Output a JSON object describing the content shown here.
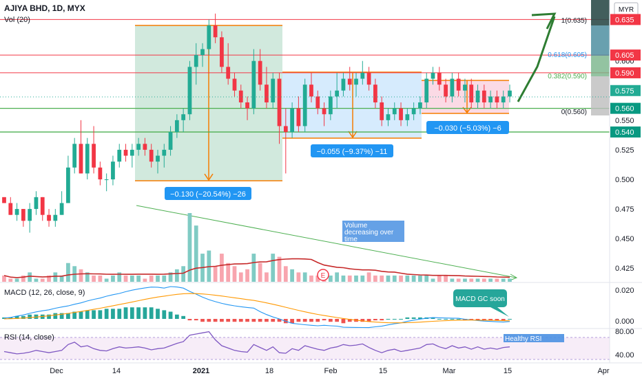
{
  "header": {
    "symbol": "AJIYA BHD, 1D, MYX",
    "volume_label": "Vol (20)",
    "currency": "MYR"
  },
  "panes": {
    "macd_label": "MACD (12, 26, close, 9)",
    "rsi_label": "RSI (14, close)"
  },
  "price_axis": {
    "ticks": [
      "0.600",
      "0.550",
      "0.525",
      "0.500",
      "0.475",
      "0.450",
      "0.425"
    ],
    "tick_values": [
      0.6,
      0.55,
      0.525,
      0.5,
      0.475,
      0.45,
      0.425
    ],
    "tags": [
      {
        "text": "0.635",
        "value": 0.635,
        "color": "#f23645"
      },
      {
        "text": "0.605",
        "value": 0.605,
        "color": "#f23645"
      },
      {
        "text": "0.590",
        "value": 0.59,
        "color": "#f23645"
      },
      {
        "text": "0.575",
        "value": 0.575,
        "color": "#22ab94"
      },
      {
        "text": "0.560",
        "value": 0.56,
        "color": "#089981"
      },
      {
        "text": "0.540",
        "value": 0.54,
        "color": "#089981"
      }
    ],
    "macd_ticks": [
      "0.020",
      "0.000"
    ],
    "rsi_ticks": [
      "80.00",
      "40.00"
    ]
  },
  "time_axis": {
    "labels": [
      "Dec",
      "14",
      "2021",
      "18",
      "Feb",
      "15",
      "Mar",
      "15",
      "Apr"
    ]
  },
  "fib": {
    "labels": [
      "1(0.635)",
      "0.618(0.605)",
      "0.382(0.590)",
      "0(0.560)"
    ]
  },
  "measures": [
    {
      "text": "−0.130 (−20.54%) −26"
    },
    {
      "text": "−0.055 (−9.37%) −11"
    },
    {
      "text": "−0.030 (−5.03%) −6"
    }
  ],
  "notes": {
    "volume": [
      "Volume",
      "decreasing over",
      "time"
    ],
    "macd": "MACD GC soon",
    "rsi": "Healthy RSI",
    "earnings": "E"
  },
  "colors": {
    "up": "#22ab94",
    "down": "#f23645",
    "resistance": "#f23645",
    "support": "#4caf50",
    "range_box": "#0b7a5a",
    "consolidation_box": "#2196f3",
    "recent_box": "#e040fb",
    "arrow": "#2e7d32"
  },
  "chart_data": {
    "type": "candlestick",
    "title": "AJIYA BHD, 1D, MYX",
    "ylim": [
      0.417,
      0.648
    ],
    "levels": {
      "resistance": [
        0.635,
        0.605,
        0.59
      ],
      "support": [
        0.56,
        0.54
      ]
    },
    "ohlc": [
      [
        0.485,
        0.485,
        0.48,
        0.48
      ],
      [
        0.48,
        0.485,
        0.47,
        0.47
      ],
      [
        0.47,
        0.48,
        0.465,
        0.475
      ],
      [
        0.475,
        0.475,
        0.46,
        0.465
      ],
      [
        0.465,
        0.48,
        0.455,
        0.475
      ],
      [
        0.475,
        0.49,
        0.47,
        0.485
      ],
      [
        0.485,
        0.485,
        0.465,
        0.47
      ],
      [
        0.47,
        0.475,
        0.46,
        0.465
      ],
      [
        0.465,
        0.475,
        0.46,
        0.47
      ],
      [
        0.47,
        0.49,
        0.47,
        0.48
      ],
      [
        0.48,
        0.52,
        0.48,
        0.51
      ],
      [
        0.51,
        0.535,
        0.505,
        0.53
      ],
      [
        0.53,
        0.55,
        0.505,
        0.505
      ],
      [
        0.505,
        0.535,
        0.5,
        0.53
      ],
      [
        0.53,
        0.545,
        0.505,
        0.51
      ],
      [
        0.51,
        0.515,
        0.495,
        0.5
      ],
      [
        0.5,
        0.505,
        0.49,
        0.5
      ],
      [
        0.5,
        0.52,
        0.495,
        0.515
      ],
      [
        0.515,
        0.53,
        0.51,
        0.525
      ],
      [
        0.525,
        0.53,
        0.515,
        0.52
      ],
      [
        0.52,
        0.53,
        0.51,
        0.525
      ],
      [
        0.525,
        0.535,
        0.52,
        0.53
      ],
      [
        0.53,
        0.535,
        0.52,
        0.525
      ],
      [
        0.525,
        0.53,
        0.51,
        0.515
      ],
      [
        0.515,
        0.525,
        0.505,
        0.52
      ],
      [
        0.52,
        0.53,
        0.51,
        0.525
      ],
      [
        0.525,
        0.545,
        0.52,
        0.54
      ],
      [
        0.54,
        0.555,
        0.535,
        0.55
      ],
      [
        0.55,
        0.56,
        0.54,
        0.555
      ],
      [
        0.555,
        0.6,
        0.55,
        0.595
      ],
      [
        0.595,
        0.615,
        0.58,
        0.605
      ],
      [
        0.605,
        0.615,
        0.595,
        0.61
      ],
      [
        0.61,
        0.635,
        0.605,
        0.63
      ],
      [
        0.63,
        0.64,
        0.615,
        0.62
      ],
      [
        0.62,
        0.625,
        0.59,
        0.595
      ],
      [
        0.595,
        0.615,
        0.58,
        0.585
      ],
      [
        0.585,
        0.59,
        0.57,
        0.575
      ],
      [
        0.575,
        0.58,
        0.56,
        0.565
      ],
      [
        0.565,
        0.57,
        0.55,
        0.56
      ],
      [
        0.56,
        0.61,
        0.555,
        0.6
      ],
      [
        0.6,
        0.61,
        0.575,
        0.58
      ],
      [
        0.58,
        0.595,
        0.56,
        0.565
      ],
      [
        0.565,
        0.59,
        0.56,
        0.585
      ],
      [
        0.585,
        0.59,
        0.53,
        0.545
      ],
      [
        0.545,
        0.56,
        0.505,
        0.54
      ],
      [
        0.54,
        0.565,
        0.535,
        0.56
      ],
      [
        0.56,
        0.57,
        0.54,
        0.545
      ],
      [
        0.545,
        0.585,
        0.54,
        0.58
      ],
      [
        0.58,
        0.59,
        0.565,
        0.57
      ],
      [
        0.57,
        0.575,
        0.555,
        0.56
      ],
      [
        0.56,
        0.565,
        0.545,
        0.555
      ],
      [
        0.555,
        0.575,
        0.55,
        0.57
      ],
      [
        0.57,
        0.59,
        0.56,
        0.575
      ],
      [
        0.575,
        0.59,
        0.57,
        0.585
      ],
      [
        0.585,
        0.595,
        0.575,
        0.58
      ],
      [
        0.58,
        0.59,
        0.57,
        0.585
      ],
      [
        0.585,
        0.6,
        0.58,
        0.59
      ],
      [
        0.59,
        0.595,
        0.575,
        0.58
      ],
      [
        0.58,
        0.585,
        0.56,
        0.565
      ],
      [
        0.565,
        0.57,
        0.545,
        0.55
      ],
      [
        0.55,
        0.56,
        0.545,
        0.555
      ],
      [
        0.555,
        0.565,
        0.55,
        0.56
      ],
      [
        0.56,
        0.565,
        0.545,
        0.55
      ],
      [
        0.55,
        0.56,
        0.545,
        0.555
      ],
      [
        0.555,
        0.565,
        0.55,
        0.56
      ],
      [
        0.56,
        0.57,
        0.555,
        0.565
      ],
      [
        0.565,
        0.59,
        0.56,
        0.585
      ],
      [
        0.585,
        0.595,
        0.58,
        0.59
      ],
      [
        0.59,
        0.595,
        0.575,
        0.58
      ],
      [
        0.58,
        0.585,
        0.565,
        0.57
      ],
      [
        0.57,
        0.59,
        0.565,
        0.585
      ],
      [
        0.585,
        0.59,
        0.57,
        0.575
      ],
      [
        0.575,
        0.585,
        0.565,
        0.58
      ],
      [
        0.58,
        0.585,
        0.56,
        0.565
      ],
      [
        0.565,
        0.58,
        0.56,
        0.575
      ],
      [
        0.575,
        0.58,
        0.56,
        0.565
      ],
      [
        0.565,
        0.575,
        0.56,
        0.57
      ],
      [
        0.57,
        0.575,
        0.56,
        0.565
      ],
      [
        0.565,
        0.575,
        0.56,
        0.57
      ],
      [
        0.57,
        0.58,
        0.565,
        0.575
      ]
    ],
    "volume": [
      2,
      1,
      1,
      2,
      3,
      1,
      1,
      2,
      3,
      2,
      6,
      5,
      4,
      3,
      2,
      2,
      1,
      2,
      3,
      2,
      2,
      2,
      1,
      2,
      2,
      2,
      3,
      4,
      5,
      22,
      18,
      9,
      10,
      5,
      9,
      6,
      5,
      3,
      4,
      9,
      6,
      3,
      9,
      8,
      5,
      4,
      3,
      3,
      2,
      2,
      2,
      2,
      3,
      2,
      2,
      2,
      2,
      3,
      2,
      2,
      2,
      2,
      2,
      2,
      2,
      2,
      2,
      1,
      2,
      2,
      1,
      1,
      1,
      1,
      1,
      1,
      1,
      1,
      1,
      1
    ],
    "macd_hist": [
      0.001,
      0.001,
      0.002,
      0.002,
      0.003,
      0.003,
      0.003,
      0.003,
      0.004,
      0.004,
      0.004,
      0.005,
      0.005,
      0.006,
      0.006,
      0.006,
      0.007,
      0.007,
      0.007,
      0.008,
      0.008,
      0.008,
      0.008,
      0.008,
      0.007,
      0.006,
      0.005,
      0.003,
      0.002,
      -0.001,
      -0.001,
      -0.002,
      -0.002,
      -0.002,
      -0.002,
      -0.002,
      -0.002,
      -0.002,
      -0.002,
      -0.002,
      -0.002,
      -0.002,
      -0.002,
      -0.002,
      -0.003,
      -0.003,
      -0.002,
      -0.002,
      -0.002,
      -0.002,
      -0.001,
      -0.002,
      -0.002,
      -0.003,
      -0.002,
      -0.002,
      -0.002,
      -0.002,
      -0.001,
      -0.001,
      0.0,
      0.0,
      0.0,
      0.001,
      0.001,
      0.001,
      0.001,
      0.001,
      0.0,
      0.0,
      0.0,
      0.0,
      -0.001,
      -0.001,
      -0.001,
      -0.001,
      -0.001,
      -0.001,
      -0.001,
      0.0
    ],
    "rsi": [
      50,
      48,
      46,
      47,
      49,
      52,
      50,
      48,
      50,
      52,
      62,
      66,
      58,
      60,
      55,
      52,
      51,
      55,
      58,
      56,
      57,
      58,
      56,
      53,
      55,
      56,
      60,
      64,
      67,
      78,
      80,
      82,
      84,
      70,
      60,
      56,
      52,
      50,
      49,
      62,
      57,
      52,
      58,
      48,
      47,
      55,
      52,
      60,
      57,
      54,
      52,
      56,
      58,
      62,
      60,
      61,
      63,
      57,
      52,
      48,
      52,
      54,
      50,
      52,
      54,
      56,
      62,
      63,
      58,
      55,
      60,
      56,
      58,
      54,
      58,
      54,
      56,
      54,
      57,
      58
    ],
    "macd_axis_ticks": [
      0.02,
      0.0
    ],
    "rsi_axis_ticks": [
      80,
      40
    ]
  }
}
